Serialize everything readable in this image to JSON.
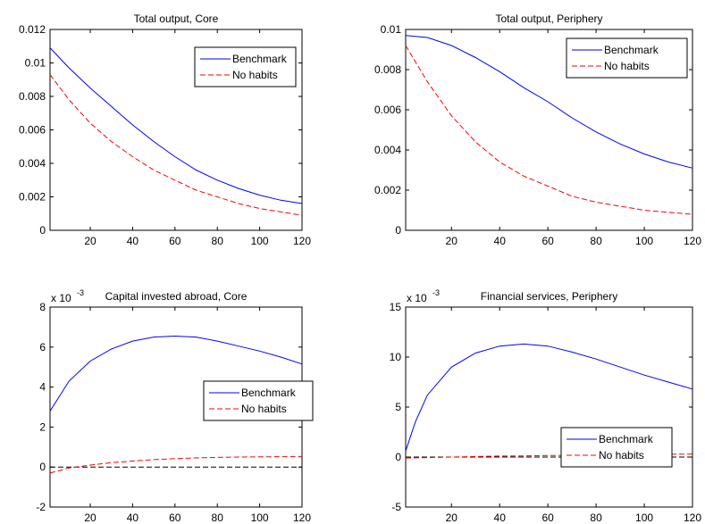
{
  "chart_data": [
    {
      "type": "line",
      "title": "Total output, Core",
      "xlim": [
        1,
        120
      ],
      "ylim": [
        0,
        0.012
      ],
      "xticks": [
        20,
        40,
        60,
        80,
        100,
        120
      ],
      "yticks": [
        0,
        0.002,
        0.004,
        0.006,
        0.008,
        0.01,
        0.012
      ],
      "ytick_labels": [
        "0",
        "0.002",
        "0.004",
        "0.006",
        "0.008",
        "0.01",
        "0.012"
      ],
      "exponent_label": "",
      "legend_position": "upper-right",
      "zero_line": false,
      "x": [
        1,
        10,
        20,
        30,
        40,
        50,
        60,
        70,
        80,
        90,
        100,
        110,
        120
      ],
      "series": [
        {
          "name": "Benchmark",
          "color": "#0000ff",
          "dash": "solid",
          "values": [
            0.0109,
            0.0097,
            0.0085,
            0.0074,
            0.0063,
            0.0053,
            0.0044,
            0.0036,
            0.003,
            0.0025,
            0.0021,
            0.0018,
            0.0016
          ]
        },
        {
          "name": "No habits",
          "color": "#ff0000",
          "dash": "dashed",
          "values": [
            0.0093,
            0.0078,
            0.0064,
            0.0053,
            0.0044,
            0.0036,
            0.003,
            0.0024,
            0.002,
            0.0016,
            0.0013,
            0.0011,
            0.0009
          ]
        }
      ]
    },
    {
      "type": "line",
      "title": "Total output, Periphery",
      "xlim": [
        1,
        120
      ],
      "ylim": [
        0,
        0.01
      ],
      "xticks": [
        20,
        40,
        60,
        80,
        100,
        120
      ],
      "yticks": [
        0,
        0.002,
        0.004,
        0.006,
        0.008,
        0.01
      ],
      "ytick_labels": [
        "0",
        "0.002",
        "0.004",
        "0.006",
        "0.008",
        "0.01"
      ],
      "exponent_label": "",
      "legend_position": "upper-right",
      "zero_line": false,
      "x": [
        1,
        10,
        20,
        30,
        40,
        50,
        60,
        70,
        80,
        90,
        100,
        110,
        120
      ],
      "series": [
        {
          "name": "Benchmark",
          "color": "#0000ff",
          "dash": "solid",
          "values": [
            0.0097,
            0.0096,
            0.0092,
            0.0086,
            0.0079,
            0.0071,
            0.0064,
            0.0056,
            0.0049,
            0.0043,
            0.0038,
            0.0034,
            0.0031
          ]
        },
        {
          "name": "No habits",
          "color": "#ff0000",
          "dash": "dashed",
          "values": [
            0.0092,
            0.0074,
            0.0057,
            0.0044,
            0.0034,
            0.0027,
            0.0022,
            0.0017,
            0.0014,
            0.0012,
            0.001,
            0.0009,
            0.0008
          ]
        }
      ]
    },
    {
      "type": "line",
      "title": "Capital invested abroad, Core",
      "xlim": [
        1,
        120
      ],
      "ylim": [
        -2,
        8
      ],
      "xticks": [
        20,
        40,
        60,
        80,
        100,
        120
      ],
      "yticks": [
        -2,
        0,
        2,
        4,
        6,
        8
      ],
      "ytick_labels": [
        "-2",
        "0",
        "2",
        "4",
        "6",
        "8"
      ],
      "exponent_label": "x 10",
      "exponent_power": "-3",
      "legend_position": "center-right",
      "zero_line": true,
      "x": [
        1,
        10,
        20,
        30,
        40,
        50,
        60,
        70,
        80,
        90,
        100,
        110,
        120
      ],
      "series": [
        {
          "name": "Benchmark",
          "color": "#0000ff",
          "dash": "solid",
          "values": [
            2.8,
            4.3,
            5.3,
            5.9,
            6.3,
            6.5,
            6.55,
            6.5,
            6.3,
            6.05,
            5.8,
            5.5,
            5.15
          ]
        },
        {
          "name": "No habits",
          "color": "#ff0000",
          "dash": "dashed",
          "values": [
            -0.3,
            -0.05,
            0.1,
            0.22,
            0.3,
            0.37,
            0.42,
            0.46,
            0.48,
            0.5,
            0.51,
            0.52,
            0.52
          ]
        }
      ]
    },
    {
      "type": "line",
      "title": "Financial services, Periphery",
      "xlim": [
        1,
        120
      ],
      "ylim": [
        -5,
        15
      ],
      "xticks": [
        20,
        40,
        60,
        80,
        100,
        120
      ],
      "yticks": [
        -5,
        0,
        5,
        10,
        15
      ],
      "ytick_labels": [
        "-5",
        "0",
        "5",
        "10",
        "15"
      ],
      "exponent_label": "x 10",
      "exponent_power": "-3",
      "legend_position": "lower-right",
      "zero_line": true,
      "x": [
        1,
        5,
        10,
        20,
        30,
        40,
        50,
        60,
        70,
        80,
        90,
        100,
        110,
        120
      ],
      "series": [
        {
          "name": "Benchmark",
          "color": "#0000ff",
          "dash": "solid",
          "values": [
            0.6,
            3.5,
            6.2,
            9.0,
            10.4,
            11.1,
            11.3,
            11.1,
            10.5,
            9.8,
            9.0,
            8.2,
            7.5,
            6.8
          ]
        },
        {
          "name": "No habits",
          "color": "#ff0000",
          "dash": "dashed",
          "values": [
            -0.1,
            -0.08,
            -0.05,
            0.0,
            0.05,
            0.1,
            0.12,
            0.15,
            0.18,
            0.2,
            0.22,
            0.25,
            0.28,
            0.3
          ]
        }
      ]
    }
  ]
}
